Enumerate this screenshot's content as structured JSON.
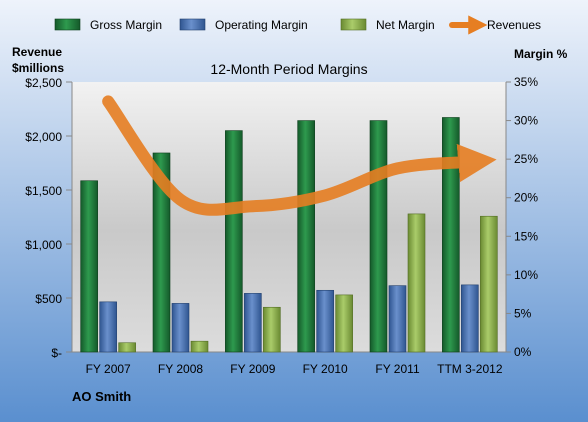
{
  "chart_data": {
    "type": "bar",
    "title": "12-Month Period Margins",
    "company": "AO Smith",
    "y_left_label_line1": "Revenue",
    "y_left_label_line2": "$millions",
    "y_right_label": "Margin %",
    "categories": [
      "FY 2007",
      "FY 2008",
      "FY 2009",
      "FY 2010",
      "FY 2011",
      "TTM 3-2012"
    ],
    "y_left_ticks": [
      "$-",
      "$500",
      "$1,000",
      "$1,500",
      "$2,000",
      "$2,500"
    ],
    "y_right_ticks": [
      "0%",
      "5%",
      "10%",
      "15%",
      "20%",
      "25%",
      "30%",
      "35%"
    ],
    "ylim_left": [
      0,
      2500
    ],
    "ylim_right": [
      0,
      35
    ],
    "series": [
      {
        "name": "Gross Margin",
        "axis": "right",
        "values": [
          22.2,
          25.8,
          28.7,
          30.0,
          30.0,
          30.4
        ],
        "color": "#1f7a3a"
      },
      {
        "name": "Operating Margin",
        "axis": "right",
        "values": [
          6.5,
          6.3,
          7.6,
          8.0,
          8.6,
          8.7
        ],
        "color": "#4a72b0"
      },
      {
        "name": "Net Margin",
        "axis": "right",
        "values": [
          1.2,
          1.4,
          5.8,
          7.4,
          17.9,
          17.6
        ],
        "color": "#8fb34d"
      },
      {
        "name": "Revenues",
        "axis": "left",
        "type": "line",
        "values": [
          2320,
          1410,
          1350,
          1450,
          1700,
          1760
        ],
        "color": "#e67e22"
      }
    ],
    "legend_placement": "top",
    "grid": false
  }
}
